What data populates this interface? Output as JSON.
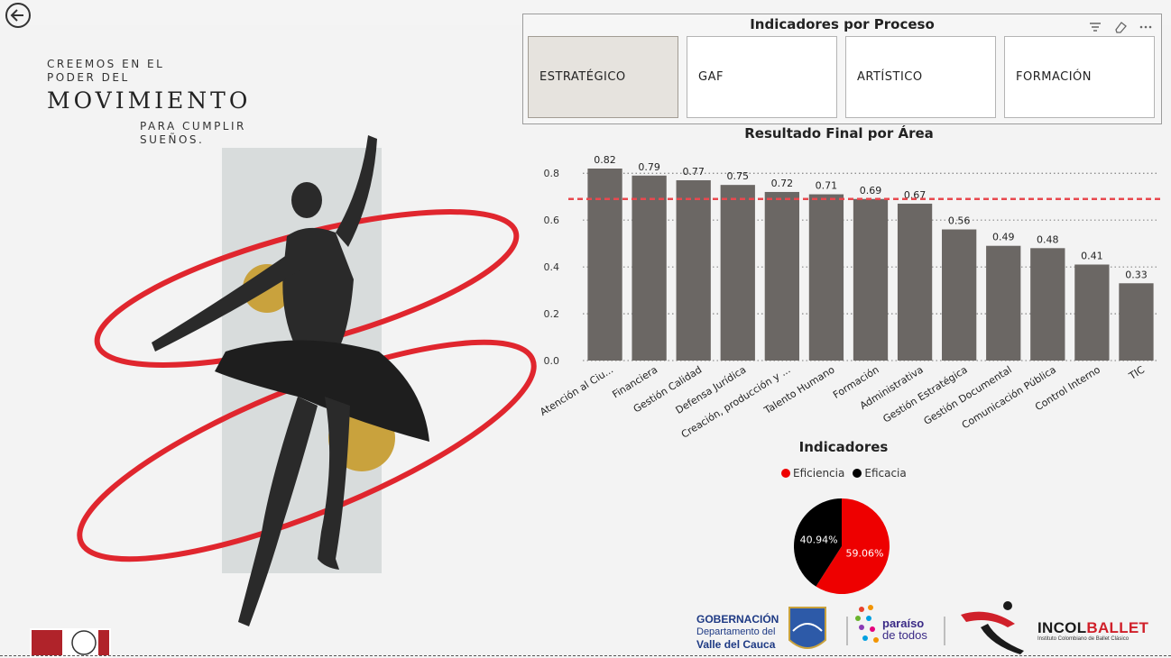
{
  "poster": {
    "line1": "CREEMOS EN EL",
    "line2": "PODER DEL",
    "line3": "MOVIMIENTO",
    "line4": "PARA CUMPLIR",
    "line5": "SUEÑOS."
  },
  "slicer": {
    "title": "Indicadores por Proceso",
    "options": [
      {
        "label": "ESTRATÉGICO",
        "selected": true
      },
      {
        "label": "GAF",
        "selected": false
      },
      {
        "label": "ARTÍSTICO",
        "selected": false
      },
      {
        "label": "FORMACIÓN",
        "selected": false
      }
    ],
    "tool_icons": [
      "filter-icon",
      "eraser-icon",
      "more-options-icon"
    ]
  },
  "chart_data": [
    {
      "type": "bar",
      "title": "Resultado Final por Área",
      "categories": [
        "Atención al Ciu...",
        "Financiera",
        "Gestión Calidad",
        "Defensa Jurídica",
        "Creación, producción y ...",
        "Talento Humano",
        "Formación",
        "Administrativa",
        "Gestión Estratégica",
        "Gestión Documental",
        "Comunicación Pública",
        "Control Interno",
        "TIC"
      ],
      "values": [
        0.82,
        0.79,
        0.77,
        0.75,
        0.72,
        0.71,
        0.69,
        0.67,
        0.56,
        0.49,
        0.48,
        0.41,
        0.33
      ],
      "data_labels": [
        "0.82",
        "0.79",
        "0.77",
        "0.75",
        "0.72",
        "0.71",
        "0.69",
        "0.67",
        "0.56",
        "0.49",
        "0.48",
        "0.41",
        "0.33"
      ],
      "yticks": [
        "0.0",
        "0.2",
        "0.4",
        "0.6",
        "0.8"
      ],
      "ylim": [
        0,
        0.87
      ],
      "reference_line": 0.69,
      "bar_color": "#6b6764",
      "reference_color": "#e8494f",
      "grid": true,
      "xlabel": "",
      "ylabel": ""
    },
    {
      "type": "pie",
      "title": "Indicadores",
      "labels": [
        "Eficiencia",
        "Eficacia"
      ],
      "values": [
        59.06,
        40.94
      ],
      "value_labels": [
        "59.06%",
        "40.94%"
      ],
      "colors": [
        "#ee0000",
        "#000000"
      ],
      "legend": "top"
    }
  ],
  "logos": {
    "gob1": "GOBERNACIÓN",
    "gob2": "Departamento del",
    "gob3": "Valle del Cauca",
    "par1": "paraíso",
    "par2": "de todos",
    "inc_a": "INCOL",
    "inc_b": "BALLET",
    "inc2": "Instituto Colombiano de Ballet Clásico"
  },
  "colors": {
    "accent_red": "#e0262e",
    "gold": "#c9a23d",
    "panel_grey": "#d8dcdc"
  }
}
